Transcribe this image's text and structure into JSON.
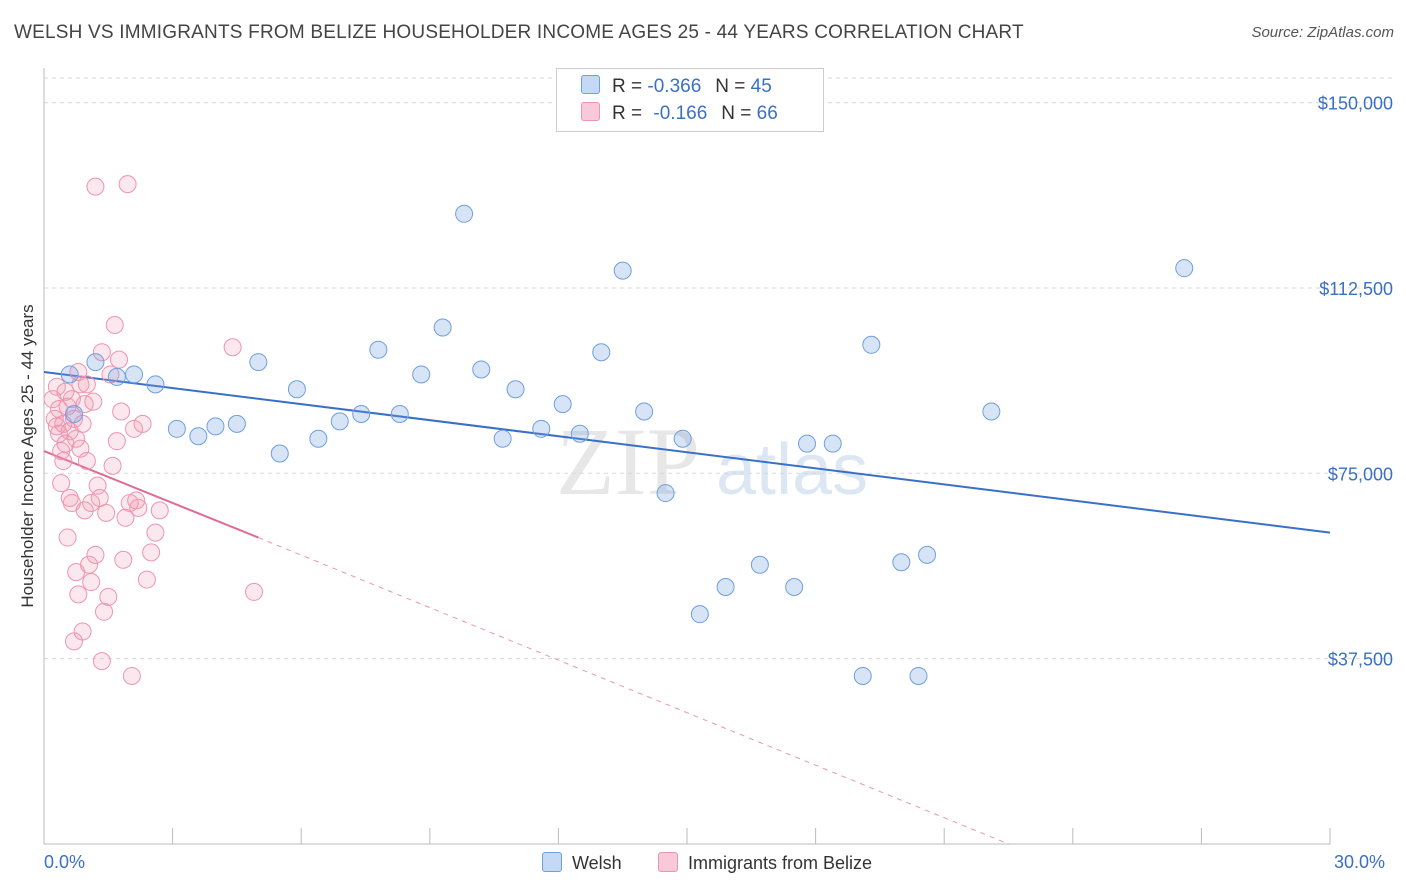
{
  "title": "WELSH VS IMMIGRANTS FROM BELIZE HOUSEHOLDER INCOME AGES 25 - 44 YEARS CORRELATION CHART",
  "source": "Source: ZipAtlas.com",
  "watermark": {
    "zip": "ZIP",
    "atlas": "atlas"
  },
  "legend": {
    "welsh": {
      "r_label": "R =",
      "r_value": "-0.366",
      "n_label": "N =",
      "n_value": "45"
    },
    "belize": {
      "r_label": "R =",
      "r_value": "-0.166",
      "n_label": "N =",
      "n_value": "66"
    }
  },
  "chart_data": {
    "type": "scatter",
    "title": "WELSH VS IMMIGRANTS FROM BELIZE HOUSEHOLDER INCOME AGES 25 - 44 YEARS CORRELATION CHART",
    "xlabel": "",
    "ylabel": "Householder Income Ages 25 - 44 years",
    "xlim": [
      0,
      30
    ],
    "ylim": [
      0,
      157000
    ],
    "x_tick_labels": [
      "0.0%",
      "30.0%"
    ],
    "y_ticks": [
      37500,
      75000,
      112500,
      150000
    ],
    "y_tick_labels": [
      "$37,500",
      "$75,000",
      "$112,500",
      "$150,000"
    ],
    "grid": "horizontal dashed",
    "legend_position": "top-center",
    "colors": {
      "welsh": "#6f9fe0",
      "belize": "#ef94b0",
      "welsh_line": "#3a70c4",
      "belize_line": "#e06a95"
    },
    "series": [
      {
        "name": "Welsh",
        "points": [
          [
            0.6,
            95000
          ],
          [
            0.7,
            87000
          ],
          [
            1.2,
            97500
          ],
          [
            1.7,
            94500
          ],
          [
            2.1,
            95000
          ],
          [
            2.6,
            93000
          ],
          [
            3.1,
            84000
          ],
          [
            3.6,
            82500
          ],
          [
            4.0,
            84500
          ],
          [
            4.5,
            85000
          ],
          [
            5.0,
            97500
          ],
          [
            5.5,
            79000
          ],
          [
            5.9,
            92000
          ],
          [
            6.4,
            82000
          ],
          [
            6.9,
            85500
          ],
          [
            7.4,
            87000
          ],
          [
            7.8,
            100000
          ],
          [
            8.3,
            87000
          ],
          [
            8.8,
            95000
          ],
          [
            9.3,
            104500
          ],
          [
            9.8,
            127500
          ],
          [
            10.2,
            96000
          ],
          [
            10.7,
            82000
          ],
          [
            11.0,
            92000
          ],
          [
            11.6,
            84000
          ],
          [
            12.1,
            89000
          ],
          [
            12.5,
            83000
          ],
          [
            13.0,
            99500
          ],
          [
            13.5,
            116000
          ],
          [
            14.0,
            87500
          ],
          [
            14.5,
            71000
          ],
          [
            14.9,
            82000
          ],
          [
            15.3,
            46500
          ],
          [
            15.9,
            52000
          ],
          [
            16.7,
            56500
          ],
          [
            17.5,
            52000
          ],
          [
            17.8,
            81000
          ],
          [
            18.4,
            81000
          ],
          [
            19.1,
            34000
          ],
          [
            19.3,
            101000
          ],
          [
            20.0,
            57000
          ],
          [
            20.4,
            34000
          ],
          [
            20.6,
            58500
          ],
          [
            22.1,
            87500
          ],
          [
            26.6,
            116500
          ]
        ]
      },
      {
        "name": "Immigrants from Belize",
        "points": [
          [
            0.2,
            90000
          ],
          [
            0.25,
            86000
          ],
          [
            0.3,
            84500
          ],
          [
            0.35,
            88000
          ],
          [
            0.4,
            79500
          ],
          [
            0.45,
            77500
          ],
          [
            0.5,
            91500
          ],
          [
            0.55,
            88500
          ],
          [
            0.6,
            83500
          ],
          [
            0.65,
            69000
          ],
          [
            0.7,
            86000
          ],
          [
            0.75,
            82000
          ],
          [
            0.8,
            95500
          ],
          [
            0.85,
            93000
          ],
          [
            0.9,
            85000
          ],
          [
            0.95,
            67500
          ],
          [
            1.0,
            77500
          ],
          [
            1.05,
            56500
          ],
          [
            1.1,
            53000
          ],
          [
            1.15,
            89500
          ],
          [
            1.2,
            58500
          ],
          [
            1.25,
            72500
          ],
          [
            1.3,
            70000
          ],
          [
            1.35,
            99500
          ],
          [
            1.4,
            47000
          ],
          [
            1.45,
            67000
          ],
          [
            1.5,
            50000
          ],
          [
            1.55,
            95000
          ],
          [
            1.6,
            76500
          ],
          [
            1.65,
            105000
          ],
          [
            1.7,
            81500
          ],
          [
            1.75,
            98000
          ],
          [
            1.8,
            87500
          ],
          [
            1.85,
            57500
          ],
          [
            1.9,
            66000
          ],
          [
            1.95,
            133500
          ],
          [
            2.0,
            69000
          ],
          [
            2.05,
            34000
          ],
          [
            2.1,
            84000
          ],
          [
            2.15,
            69500
          ],
          [
            2.2,
            68000
          ],
          [
            2.3,
            85000
          ],
          [
            2.4,
            53500
          ],
          [
            2.5,
            59000
          ],
          [
            2.6,
            63000
          ],
          [
            2.7,
            67500
          ],
          [
            0.4,
            73000
          ],
          [
            0.55,
            62000
          ],
          [
            0.7,
            41000
          ],
          [
            0.75,
            55000
          ],
          [
            0.8,
            50500
          ],
          [
            0.9,
            43000
          ],
          [
            1.0,
            93000
          ],
          [
            1.1,
            69000
          ],
          [
            1.2,
            133000
          ],
          [
            1.35,
            37000
          ],
          [
            0.3,
            92500
          ],
          [
            0.45,
            85000
          ],
          [
            0.5,
            81000
          ],
          [
            0.6,
            70000
          ],
          [
            0.95,
            89000
          ],
          [
            4.4,
            100500
          ],
          [
            4.9,
            51000
          ],
          [
            0.65,
            90000
          ],
          [
            0.85,
            80000
          ],
          [
            0.35,
            83000
          ]
        ]
      }
    ],
    "trendlines": [
      {
        "name": "Welsh",
        "from": [
          0,
          95500
        ],
        "to": [
          30,
          63000
        ],
        "style": "solid"
      },
      {
        "name": "Immigrants from Belize",
        "from": [
          0,
          79500
        ],
        "to": [
          5,
          62000
        ],
        "style": "solid",
        "extended_to": [
          22.5,
          0
        ]
      }
    ]
  },
  "bottom_legend": {
    "welsh": "Welsh",
    "belize": "Immigrants from Belize"
  }
}
